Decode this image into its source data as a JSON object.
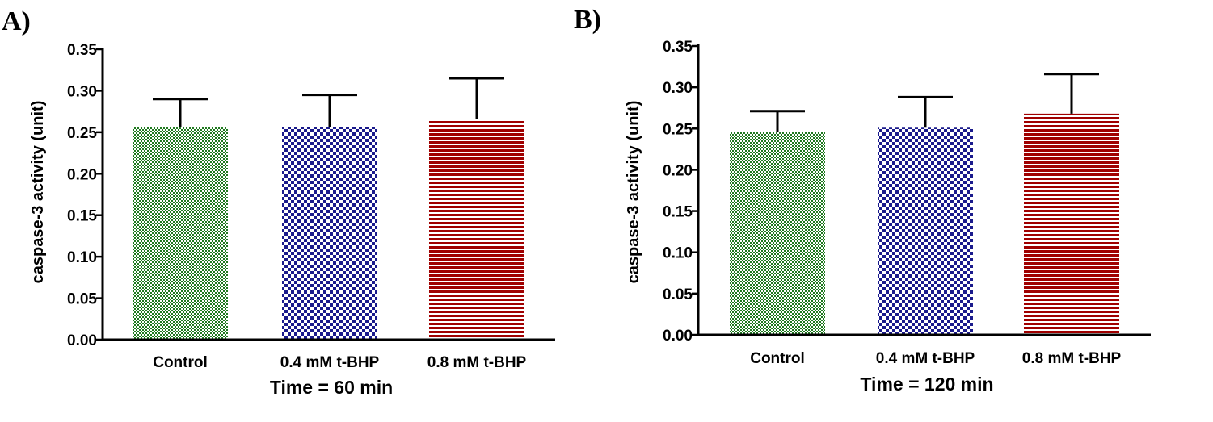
{
  "chart_data": [
    {
      "type": "bar",
      "panel": "A)",
      "categories": [
        "Control",
        "0.4 mM t-BHP",
        "0.8 mM t-BHP"
      ],
      "values": [
        0.256,
        0.256,
        0.266
      ],
      "errors": [
        0.034,
        0.039,
        0.049
      ],
      "xlabel": "Time = 60 min",
      "ylabel": "caspase-3 activity (unit)",
      "ylim": [
        0,
        0.35
      ],
      "yticks": [
        "0.00",
        "0.05",
        "0.10",
        "0.15",
        "0.20",
        "0.25",
        "0.30",
        "0.35"
      ],
      "grid": false,
      "bar_colors": [
        "#1f7a1f",
        "#1a1a8c",
        "#a00000"
      ],
      "bar_patterns": [
        "fine-checker",
        "checker",
        "horizontal-stripes"
      ]
    },
    {
      "type": "bar",
      "panel": "B)",
      "categories": [
        "Control",
        "0.4 mM t-BHP",
        "0.8 mM t-BHP"
      ],
      "values": [
        0.246,
        0.251,
        0.268
      ],
      "errors": [
        0.025,
        0.037,
        0.048
      ],
      "xlabel": "Time = 120 min",
      "ylabel": "caspase-3 activity (unit)",
      "ylim": [
        0,
        0.35
      ],
      "yticks": [
        "0.00",
        "0.05",
        "0.10",
        "0.15",
        "0.20",
        "0.25",
        "0.30",
        "0.35"
      ],
      "grid": false,
      "bar_colors": [
        "#1f7a1f",
        "#1a1a8c",
        "#a00000"
      ],
      "bar_patterns": [
        "fine-checker",
        "checker",
        "horizontal-stripes"
      ]
    }
  ]
}
